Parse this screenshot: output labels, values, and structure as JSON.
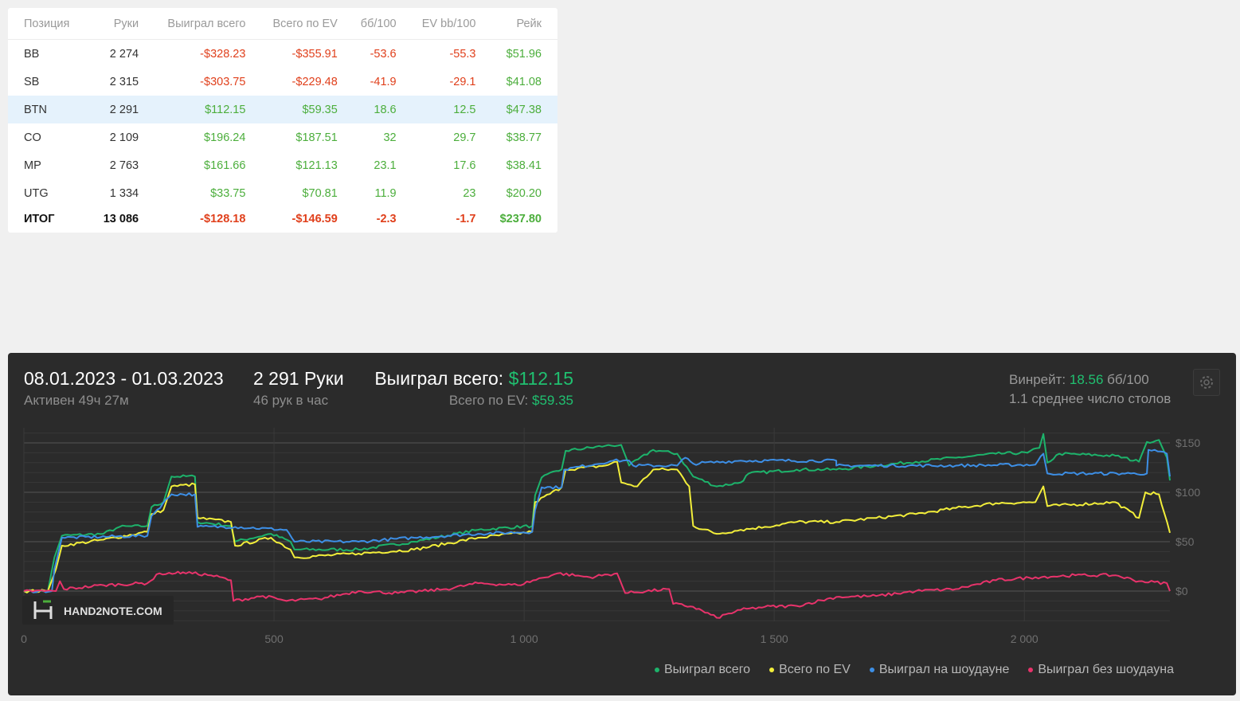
{
  "table": {
    "headers": [
      "Позиция",
      "Руки",
      "Выиграл всего",
      "Всего по EV",
      "бб/100",
      "EV bb/100",
      "Рейк"
    ],
    "rows": [
      {
        "pos": "BB",
        "hands": "2 274",
        "won": "-$328.23",
        "ev": "-$355.91",
        "bb": "-53.6",
        "evbb": "-55.3",
        "rake": "$51.96"
      },
      {
        "pos": "SB",
        "hands": "2 315",
        "won": "-$303.75",
        "ev": "-$229.48",
        "bb": "-41.9",
        "evbb": "-29.1",
        "rake": "$41.08"
      },
      {
        "pos": "BTN",
        "hands": "2 291",
        "won": "$112.15",
        "ev": "$59.35",
        "bb": "18.6",
        "evbb": "12.5",
        "rake": "$47.38"
      },
      {
        "pos": "CO",
        "hands": "2 109",
        "won": "$196.24",
        "ev": "$187.51",
        "bb": "32",
        "evbb": "29.7",
        "rake": "$38.77"
      },
      {
        "pos": "MP",
        "hands": "2 763",
        "won": "$161.66",
        "ev": "$121.13",
        "bb": "23.1",
        "evbb": "17.6",
        "rake": "$38.41"
      },
      {
        "pos": "UTG",
        "hands": "1 334",
        "won": "$33.75",
        "ev": "$70.81",
        "bb": "11.9",
        "evbb": "23",
        "rake": "$20.20"
      }
    ],
    "total": {
      "pos": "ИТОГ",
      "hands": "13 086",
      "won": "-$128.18",
      "ev": "-$146.59",
      "bb": "-2.3",
      "evbb": "-1.7",
      "rake": "$237.80"
    },
    "selected_row": 2
  },
  "summary": {
    "date_range": "08.01.2023 - 01.03.2023",
    "active": "Активен 49ч 27м",
    "hands": "2 291 Руки",
    "hands_per_hour": "46 рук в час",
    "won_label": "Выиграл всего:",
    "won_value": "$112.15",
    "ev_label": "Всего по EV:",
    "ev_value": "$59.35",
    "winrate_label": "Винрейт:",
    "winrate_value": "18.56",
    "winrate_unit": "бб/100",
    "tables": "1.1 среднее число столов"
  },
  "logo": "HAND2NOTE.COM",
  "chart_data": {
    "type": "line",
    "xlim": [
      0,
      2291
    ],
    "ylim": [
      -30,
      160
    ],
    "x_ticks": [
      0,
      500,
      1000,
      1500,
      2000
    ],
    "x_tick_labels": [
      "0",
      "500",
      "1 000",
      "1 500",
      "2 000"
    ],
    "y_ticks": [
      0,
      50,
      100,
      150
    ],
    "y_tick_labels": [
      "$0",
      "$50",
      "$100",
      "$150"
    ],
    "legend_position": "bottom-right",
    "series": [
      {
        "name": "Выиграл всего",
        "color": "#1db36b",
        "points": [
          [
            0,
            0
          ],
          [
            48,
            0
          ],
          [
            61,
            34
          ],
          [
            76,
            56
          ],
          [
            159,
            58
          ],
          [
            191,
            65
          ],
          [
            247,
            66
          ],
          [
            255,
            85
          ],
          [
            279,
            90
          ],
          [
            295,
            116
          ],
          [
            342,
            116
          ],
          [
            347,
            70
          ],
          [
            414,
            66
          ],
          [
            422,
            50
          ],
          [
            494,
            58
          ],
          [
            533,
            50
          ],
          [
            541,
            42
          ],
          [
            669,
            42
          ],
          [
            780,
            50
          ],
          [
            908,
            62
          ],
          [
            1016,
            66
          ],
          [
            1022,
            97
          ],
          [
            1035,
            115
          ],
          [
            1075,
            123
          ],
          [
            1083,
            142
          ],
          [
            1162,
            147
          ],
          [
            1194,
            148
          ],
          [
            1210,
            127
          ],
          [
            1258,
            143
          ],
          [
            1306,
            139
          ],
          [
            1338,
            116
          ],
          [
            1385,
            106
          ],
          [
            1433,
            110
          ],
          [
            1449,
            119
          ],
          [
            1545,
            123
          ],
          [
            1624,
            123
          ],
          [
            1704,
            127
          ],
          [
            1783,
            131
          ],
          [
            1863,
            135
          ],
          [
            1943,
            139
          ],
          [
            2006,
            140
          ],
          [
            2030,
            145
          ],
          [
            2038,
            159
          ],
          [
            2046,
            130
          ],
          [
            2070,
            139
          ],
          [
            2182,
            137
          ],
          [
            2229,
            131
          ],
          [
            2245,
            151
          ],
          [
            2269,
            153
          ],
          [
            2285,
            135
          ],
          [
            2291,
            112
          ]
        ]
      },
      {
        "name": "Всего по EV",
        "color": "#f2ee3a",
        "points": [
          [
            0,
            0
          ],
          [
            48,
            0
          ],
          [
            64,
            22
          ],
          [
            76,
            46
          ],
          [
            159,
            52
          ],
          [
            247,
            60
          ],
          [
            255,
            78
          ],
          [
            279,
            82
          ],
          [
            295,
            106
          ],
          [
            342,
            108
          ],
          [
            347,
            74
          ],
          [
            414,
            70
          ],
          [
            422,
            46
          ],
          [
            494,
            54
          ],
          [
            533,
            42
          ],
          [
            541,
            34
          ],
          [
            669,
            38
          ],
          [
            780,
            42
          ],
          [
            908,
            54
          ],
          [
            1016,
            60
          ],
          [
            1022,
            90
          ],
          [
            1075,
            105
          ],
          [
            1083,
            123
          ],
          [
            1162,
            127
          ],
          [
            1186,
            131
          ],
          [
            1194,
            110
          ],
          [
            1226,
            106
          ],
          [
            1258,
            123
          ],
          [
            1306,
            123
          ],
          [
            1330,
            106
          ],
          [
            1338,
            66
          ],
          [
            1385,
            58
          ],
          [
            1433,
            62
          ],
          [
            1481,
            65
          ],
          [
            1545,
            70
          ],
          [
            1624,
            70
          ],
          [
            1704,
            74
          ],
          [
            1783,
            78
          ],
          [
            1863,
            84
          ],
          [
            1943,
            89
          ],
          [
            2022,
            90
          ],
          [
            2038,
            106
          ],
          [
            2046,
            86
          ],
          [
            2182,
            90
          ],
          [
            2229,
            74
          ],
          [
            2242,
            100
          ],
          [
            2269,
            98
          ],
          [
            2291,
            59
          ]
        ]
      },
      {
        "name": "Выиграл на шоудауне",
        "color": "#3d8fe6",
        "points": [
          [
            0,
            0
          ],
          [
            56,
            0
          ],
          [
            61,
            22
          ],
          [
            76,
            54
          ],
          [
            247,
            56
          ],
          [
            255,
            76
          ],
          [
            295,
            98
          ],
          [
            342,
            98
          ],
          [
            347,
            65
          ],
          [
            422,
            65
          ],
          [
            525,
            62
          ],
          [
            541,
            50
          ],
          [
            669,
            50
          ],
          [
            780,
            54
          ],
          [
            908,
            58
          ],
          [
            1016,
            60
          ],
          [
            1022,
            82
          ],
          [
            1035,
            105
          ],
          [
            1075,
            105
          ],
          [
            1080,
            123
          ],
          [
            1178,
            132
          ],
          [
            1210,
            132
          ],
          [
            1218,
            127
          ],
          [
            1306,
            127
          ],
          [
            1322,
            135
          ],
          [
            1338,
            129
          ],
          [
            1433,
            132
          ],
          [
            1624,
            132
          ],
          [
            1624,
            127
          ],
          [
            1863,
            127
          ],
          [
            2022,
            128
          ],
          [
            2038,
            139
          ],
          [
            2046,
            119
          ],
          [
            2213,
            119
          ],
          [
            2245,
            119
          ],
          [
            2248,
            143
          ],
          [
            2285,
            139
          ],
          [
            2291,
            116
          ]
        ]
      },
      {
        "name": "Выиграл без шоудауна",
        "color": "#e8336b",
        "points": [
          [
            0,
            0
          ],
          [
            64,
            0
          ],
          [
            72,
            10
          ],
          [
            80,
            2
          ],
          [
            159,
            6
          ],
          [
            247,
            8
          ],
          [
            271,
            18
          ],
          [
            303,
            18
          ],
          [
            318,
            19
          ],
          [
            374,
            16
          ],
          [
            414,
            11
          ],
          [
            419,
            -10
          ],
          [
            478,
            -5
          ],
          [
            525,
            -10
          ],
          [
            589,
            -8
          ],
          [
            669,
            0
          ],
          [
            748,
            -2
          ],
          [
            844,
            2
          ],
          [
            908,
            8
          ],
          [
            987,
            6
          ],
          [
            1067,
            18
          ],
          [
            1131,
            14
          ],
          [
            1186,
            18
          ],
          [
            1202,
            -2
          ],
          [
            1290,
            2
          ],
          [
            1298,
            -13
          ],
          [
            1338,
            -16
          ],
          [
            1385,
            -27
          ],
          [
            1433,
            -19
          ],
          [
            1481,
            -16
          ],
          [
            1545,
            -15
          ],
          [
            1624,
            -6
          ],
          [
            1704,
            -5
          ],
          [
            1783,
            0
          ],
          [
            1863,
            2
          ],
          [
            1943,
            11
          ],
          [
            2022,
            14
          ],
          [
            2102,
            16
          ],
          [
            2182,
            16
          ],
          [
            2229,
            10
          ],
          [
            2285,
            8
          ],
          [
            2291,
            0
          ]
        ]
      }
    ]
  }
}
